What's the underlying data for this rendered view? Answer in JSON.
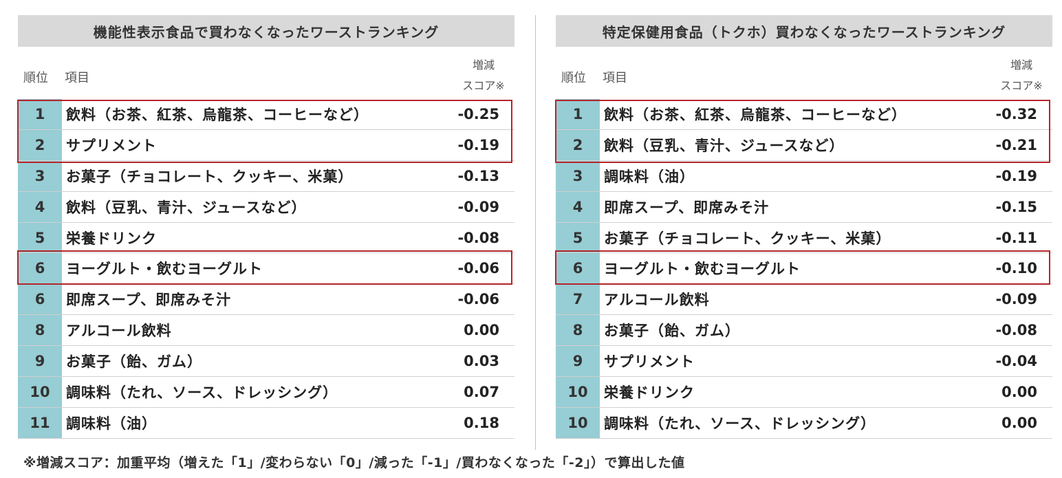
{
  "left": {
    "title": "機能性表示食品で買わなくなったワーストランキング",
    "header": {
      "rank": "順位",
      "item": "項目",
      "score_line1": "増減",
      "score_line2": "スコア※"
    },
    "rows": [
      {
        "rank": "1",
        "item": "飲料（お茶、紅茶、烏龍茶、コーヒーなど）",
        "score": "-0.25"
      },
      {
        "rank": "2",
        "item": "サプリメント",
        "score": "-0.19"
      },
      {
        "rank": "3",
        "item": "お菓子（チョコレート、クッキー、米菓）",
        "score": "-0.13"
      },
      {
        "rank": "4",
        "item": "飲料（豆乳、青汁、ジュースなど）",
        "score": "-0.09"
      },
      {
        "rank": "5",
        "item": "栄養ドリンク",
        "score": "-0.08"
      },
      {
        "rank": "6",
        "item": "ヨーグルト・飲むヨーグルト",
        "score": "-0.06"
      },
      {
        "rank": "6",
        "item": "即席スープ、即席みそ汁",
        "score": "-0.06"
      },
      {
        "rank": "8",
        "item": "アルコール飲料",
        "score": "0.00"
      },
      {
        "rank": "9",
        "item": "お菓子（飴、ガム）",
        "score": "0.03"
      },
      {
        "rank": "10",
        "item": "調味料（たれ、ソース、ドレッシング）",
        "score": "0.07"
      },
      {
        "rank": "11",
        "item": "調味料（油）",
        "score": "0.18"
      }
    ]
  },
  "right": {
    "title": "特定保健用食品（トクホ）買わなくなったワーストランキング",
    "header": {
      "rank": "順位",
      "item": "項目",
      "score_line1": "増減",
      "score_line2": "スコア※"
    },
    "rows": [
      {
        "rank": "1",
        "item": "飲料（お茶、紅茶、烏龍茶、コーヒーなど）",
        "score": "-0.32"
      },
      {
        "rank": "2",
        "item": "飲料（豆乳、青汁、ジュースなど）",
        "score": "-0.21"
      },
      {
        "rank": "3",
        "item": "調味料（油）",
        "score": "-0.19"
      },
      {
        "rank": "4",
        "item": "即席スープ、即席みそ汁",
        "score": "-0.15"
      },
      {
        "rank": "5",
        "item": "お菓子（チョコレート、クッキー、米菓）",
        "score": "-0.11"
      },
      {
        "rank": "6",
        "item": "ヨーグルト・飲むヨーグルト",
        "score": "-0.10"
      },
      {
        "rank": "7",
        "item": "アルコール飲料",
        "score": "-0.09"
      },
      {
        "rank": "8",
        "item": "お菓子（飴、ガム）",
        "score": "-0.08"
      },
      {
        "rank": "9",
        "item": "サプリメント",
        "score": "-0.04"
      },
      {
        "rank": "10",
        "item": "栄養ドリンク",
        "score": "0.00"
      },
      {
        "rank": "10",
        "item": "調味料（たれ、ソース、ドレッシング）",
        "score": "0.00"
      }
    ]
  },
  "footnote": "※増減スコア：加重平均（増えた「1」/変わらない「0」/減った「-1」/買わなくなった「-2」）で算出した値",
  "colors": {
    "rank_cell": "#97cdd4",
    "highlight_border": "#b3262b",
    "title_bar": "#d9d9d9"
  }
}
